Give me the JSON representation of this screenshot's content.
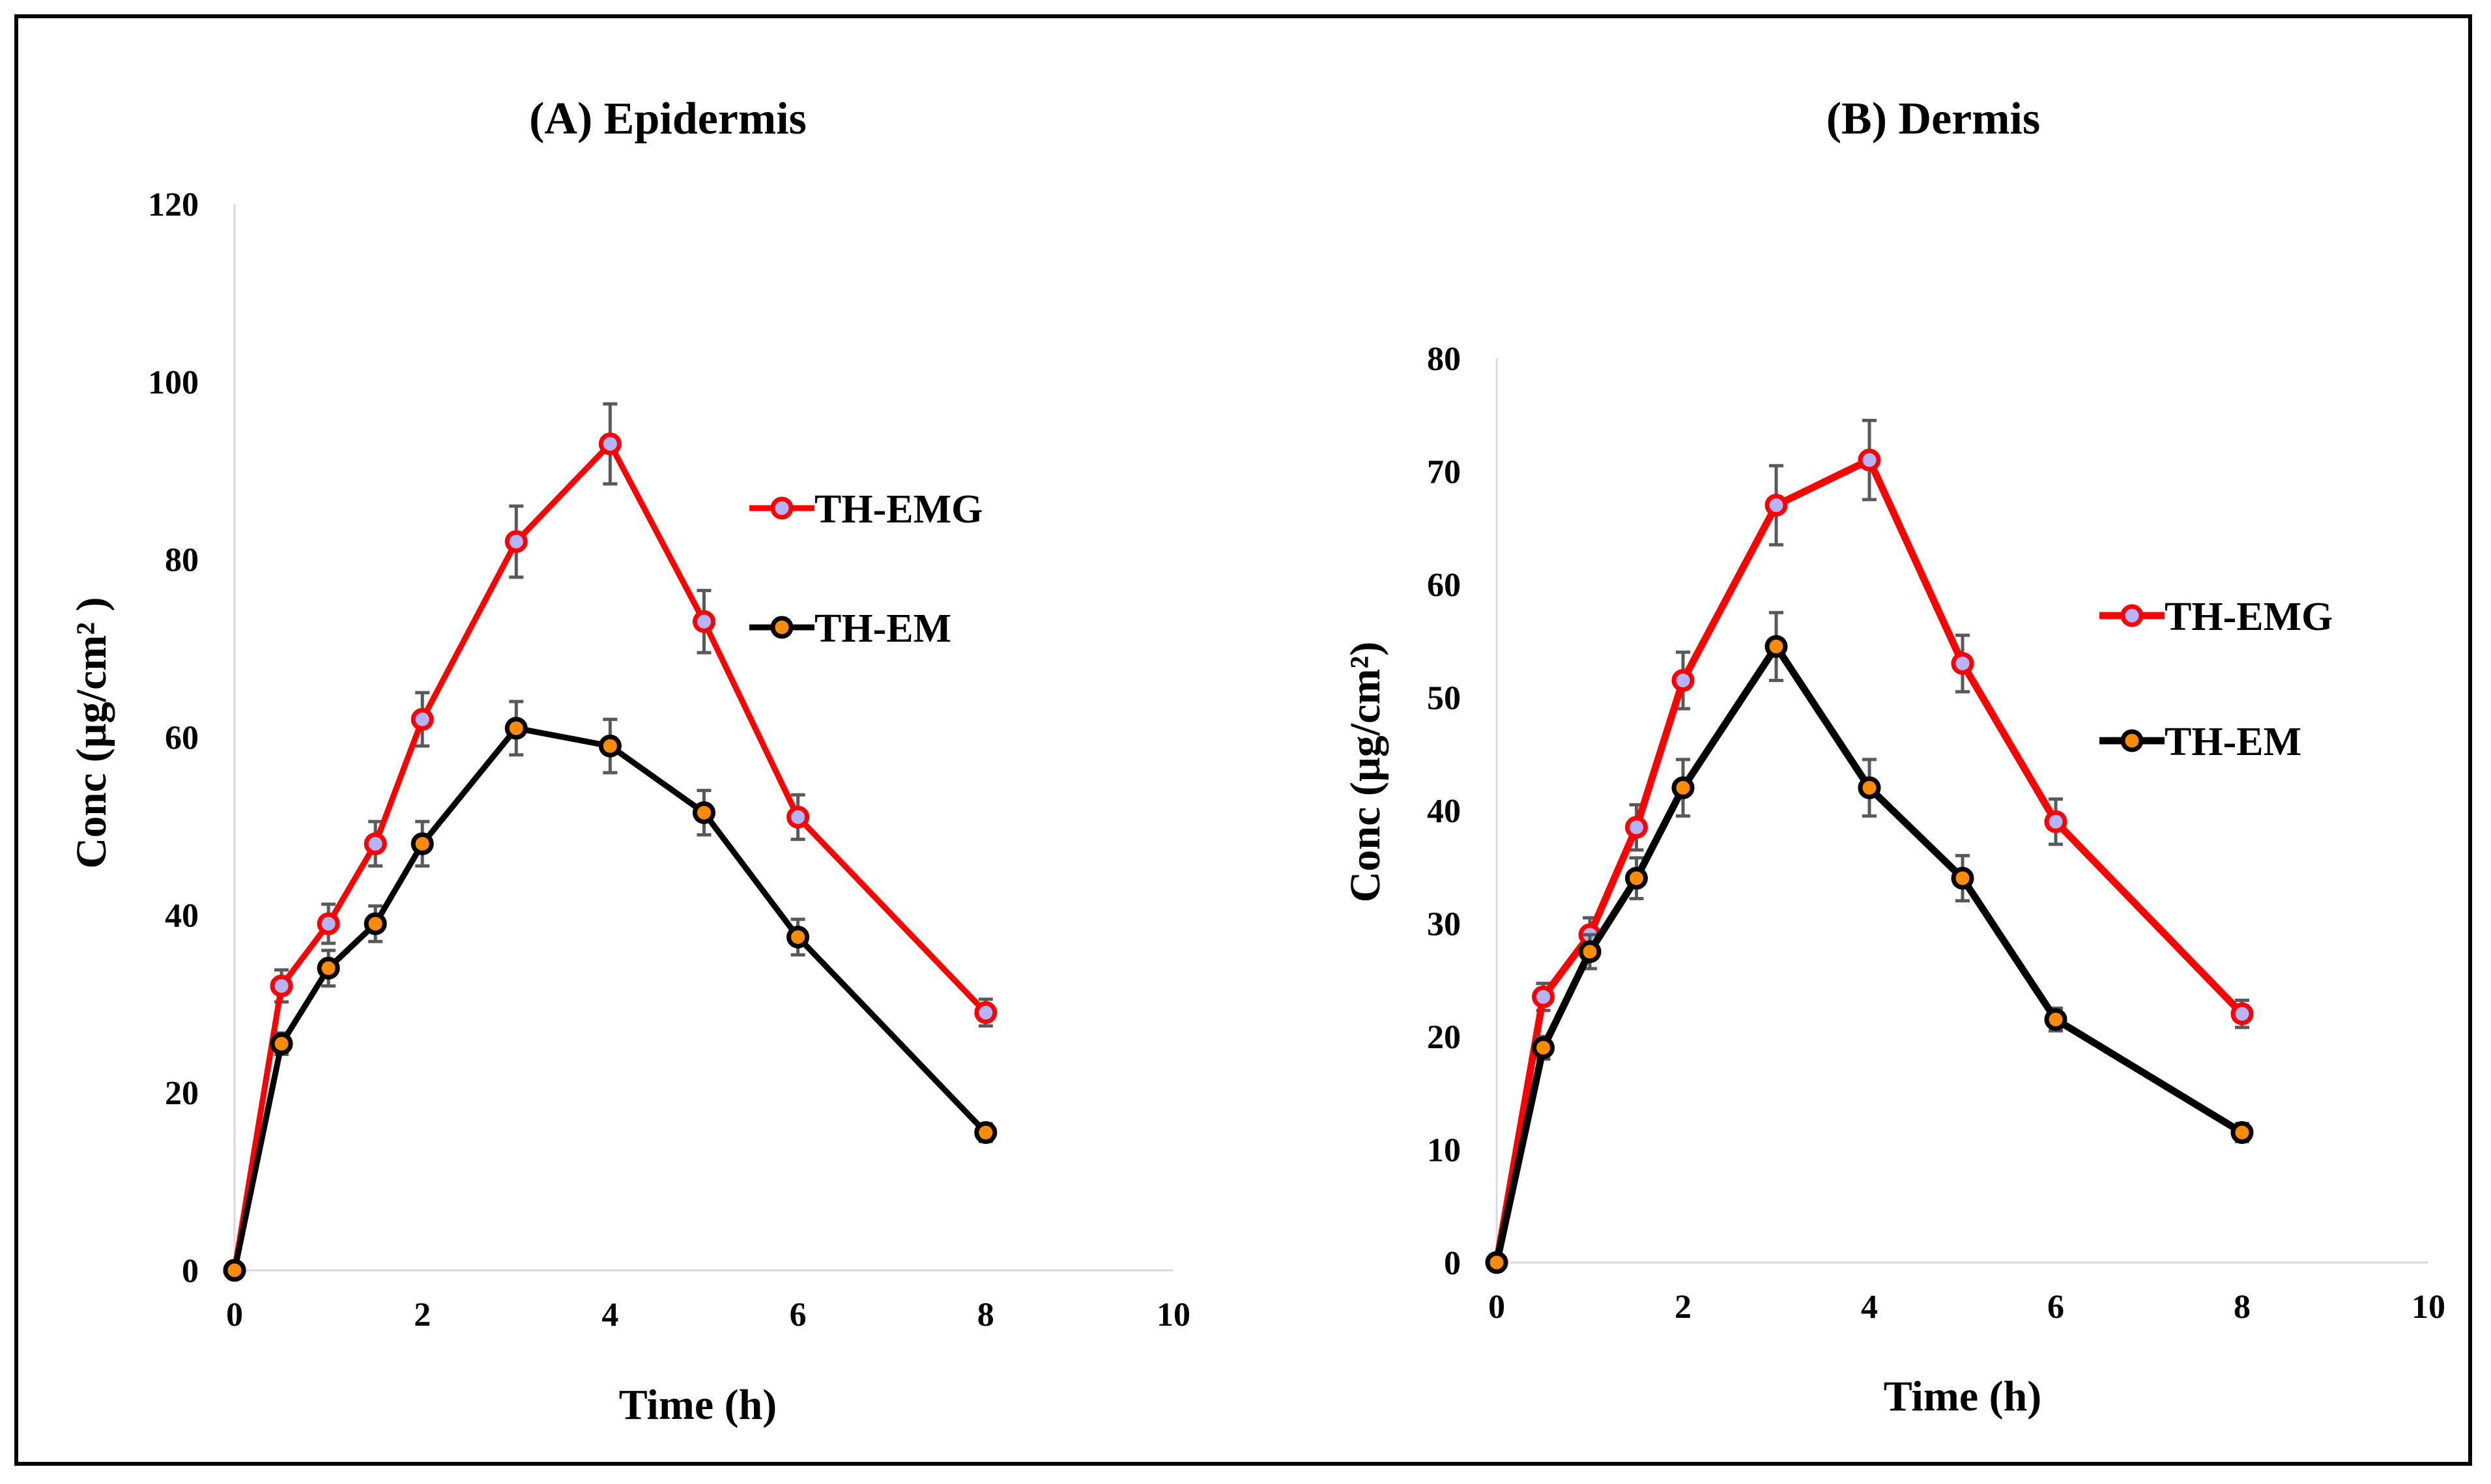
{
  "chart_data": [
    {
      "type": "line",
      "title": "(A) Epidermis",
      "xlabel": "Time (h)",
      "ylabel": "Conc (µg/cm² )",
      "xlim": [
        0,
        10
      ],
      "ylim": [
        0,
        120
      ],
      "xticks": [
        "0",
        "2",
        "4",
        "6",
        "8",
        "10"
      ],
      "yticks": [
        "0",
        "20",
        "40",
        "60",
        "80",
        "100",
        "120"
      ],
      "grid": false,
      "legend_position": "right",
      "series": [
        {
          "name": "TH-EMG",
          "color": "#ff0000",
          "x": [
            0,
            0.5,
            1,
            1.5,
            2,
            3,
            4,
            5,
            6,
            8
          ],
          "y": [
            0,
            32,
            39,
            48,
            62,
            82,
            93,
            73,
            51,
            29
          ],
          "err": [
            0,
            1.8,
            2.2,
            2.5,
            3,
            4,
            4.5,
            3.5,
            2.5,
            1.5
          ]
        },
        {
          "name": "TH-EM",
          "color": "#000000",
          "x": [
            0,
            0.5,
            1,
            1.5,
            2,
            3,
            4,
            5,
            6,
            8
          ],
          "y": [
            0,
            25.5,
            34,
            39,
            48,
            61,
            59,
            51.5,
            37.5,
            15.5
          ],
          "err": [
            0,
            1.2,
            2,
            2,
            2.5,
            3,
            3,
            2.5,
            2,
            1
          ]
        }
      ]
    },
    {
      "type": "line",
      "title": "(B) Dermis",
      "xlabel": "Time (h)",
      "ylabel": "Conc (µg/cm²)",
      "xlim": [
        0,
        10
      ],
      "ylim": [
        0,
        80
      ],
      "xticks": [
        "0",
        "2",
        "4",
        "6",
        "8",
        "10"
      ],
      "yticks": [
        "0",
        "10",
        "20",
        "30",
        "40",
        "50",
        "60",
        "70",
        "80"
      ],
      "grid": false,
      "legend_position": "right",
      "series": [
        {
          "name": "TH-EMG",
          "color": "#ff0000",
          "x": [
            0,
            0.5,
            1,
            1.5,
            2,
            3,
            4,
            5,
            6,
            8
          ],
          "y": [
            0,
            23.5,
            29,
            38.5,
            51.5,
            67,
            71,
            53,
            39,
            22
          ],
          "err": [
            0,
            1.2,
            1.5,
            2,
            2.5,
            3.5,
            3.5,
            2.5,
            2,
            1.2
          ]
        },
        {
          "name": "TH-EM",
          "color": "#000000",
          "x": [
            0,
            0.5,
            1,
            1.5,
            2,
            3,
            4,
            5,
            6,
            8
          ],
          "y": [
            0,
            19,
            27.5,
            34,
            42,
            54.5,
            42,
            34,
            21.5,
            11.5
          ],
          "err": [
            0,
            1,
            1.5,
            1.8,
            2.5,
            3,
            2.5,
            2,
            1,
            0.8
          ]
        }
      ]
    }
  ]
}
